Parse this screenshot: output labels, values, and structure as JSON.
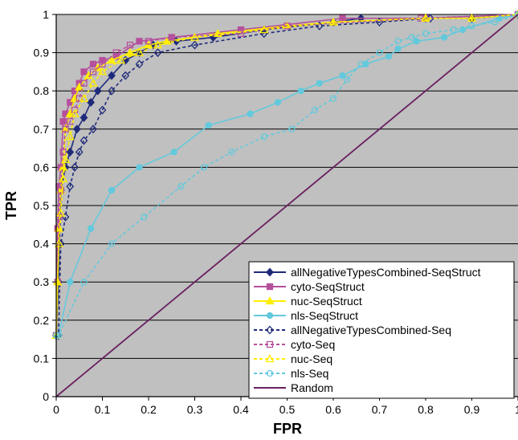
{
  "chart_data": {
    "type": "line",
    "title": "",
    "xlabel": "FPR",
    "ylabel": "TPR",
    "xlim": [
      0,
      1
    ],
    "ylim": [
      0,
      1
    ],
    "x_ticks": [
      "0",
      "0.1",
      "0.2",
      "0.3",
      "0.4",
      "0.5",
      "0.6",
      "0.7",
      "0.8",
      "0.9",
      "1"
    ],
    "y_ticks": [
      "0",
      "0.1",
      "0.2",
      "0.3",
      "0.4",
      "0.5",
      "0.6",
      "0.7",
      "0.8",
      "0.9",
      "1"
    ],
    "grid": true,
    "legend_position": "bottom-right",
    "colors": {
      "plot_background": "#c0c0c0",
      "grid": "#000000",
      "navy": "#1f2a7a",
      "magenta": "#b5509c",
      "yellow": "#ffee00",
      "cyan": "#63c9dc",
      "purple": "#6a2060"
    },
    "series": [
      {
        "name": "allNegativeTypesCombined-SeqStruct",
        "color": "#1f2a7a",
        "dash": false,
        "marker": "diamond",
        "filled": true,
        "x": [
          0,
          0.005,
          0.01,
          0.02,
          0.03,
          0.045,
          0.06,
          0.075,
          0.09,
          0.12,
          0.15,
          0.18,
          0.21,
          0.26,
          0.34,
          0.45,
          0.6,
          0.66,
          0.8,
          0.9,
          1
        ],
        "y": [
          0.16,
          0.3,
          0.54,
          0.6,
          0.64,
          0.7,
          0.73,
          0.77,
          0.8,
          0.84,
          0.88,
          0.9,
          0.92,
          0.93,
          0.94,
          0.96,
          0.98,
          0.99,
          0.99,
          0.99,
          1
        ]
      },
      {
        "name": "cyto-SeqStruct",
        "color": "#b5509c",
        "dash": false,
        "marker": "square",
        "filled": true,
        "x": [
          0,
          0.003,
          0.006,
          0.01,
          0.015,
          0.02,
          0.03,
          0.04,
          0.05,
          0.06,
          0.08,
          0.1,
          0.13,
          0.18,
          0.25,
          0.4,
          0.62,
          0.8,
          1
        ],
        "y": [
          0.16,
          0.44,
          0.55,
          0.6,
          0.72,
          0.74,
          0.77,
          0.8,
          0.82,
          0.85,
          0.87,
          0.88,
          0.89,
          0.93,
          0.94,
          0.96,
          0.99,
          0.99,
          1
        ]
      },
      {
        "name": "nuc-SeqStruct",
        "color": "#ffee00",
        "dash": false,
        "marker": "triangle",
        "filled": true,
        "x": [
          0,
          0.003,
          0.006,
          0.01,
          0.015,
          0.02,
          0.03,
          0.04,
          0.05,
          0.07,
          0.09,
          0.12,
          0.16,
          0.2,
          0.24,
          0.35,
          0.5,
          0.6,
          0.8,
          0.9,
          1
        ],
        "y": [
          0.16,
          0.3,
          0.44,
          0.54,
          0.6,
          0.7,
          0.74,
          0.78,
          0.81,
          0.84,
          0.86,
          0.88,
          0.9,
          0.92,
          0.93,
          0.95,
          0.97,
          0.98,
          0.99,
          0.99,
          1
        ]
      },
      {
        "name": "nls-SeqStruct",
        "color": "#63c9dc",
        "dash": false,
        "marker": "circle",
        "filled": true,
        "x": [
          0,
          0.005,
          0.03,
          0.075,
          0.12,
          0.18,
          0.255,
          0.33,
          0.42,
          0.48,
          0.53,
          0.57,
          0.62,
          0.67,
          0.72,
          0.74,
          0.78,
          0.84,
          0.88,
          0.96,
          1
        ],
        "y": [
          0.16,
          0.16,
          0.3,
          0.44,
          0.54,
          0.6,
          0.64,
          0.71,
          0.74,
          0.77,
          0.8,
          0.82,
          0.84,
          0.87,
          0.89,
          0.91,
          0.93,
          0.94,
          0.96,
          0.99,
          1
        ]
      },
      {
        "name": "allNegativeTypesCombined-Seq",
        "color": "#1f2a7a",
        "dash": true,
        "marker": "diamond",
        "filled": false,
        "x": [
          0,
          0.005,
          0.01,
          0.02,
          0.03,
          0.04,
          0.05,
          0.06,
          0.08,
          0.1,
          0.12,
          0.15,
          0.18,
          0.22,
          0.3,
          0.45,
          0.57,
          0.7,
          0.81,
          0.9,
          1
        ],
        "y": [
          0.16,
          0.16,
          0.4,
          0.47,
          0.55,
          0.6,
          0.64,
          0.67,
          0.7,
          0.75,
          0.8,
          0.84,
          0.87,
          0.9,
          0.92,
          0.95,
          0.97,
          0.98,
          0.99,
          0.99,
          1
        ]
      },
      {
        "name": "cyto-Seq",
        "color": "#b5509c",
        "dash": true,
        "marker": "square",
        "filled": false,
        "x": [
          0,
          0.003,
          0.006,
          0.01,
          0.015,
          0.02,
          0.03,
          0.04,
          0.05,
          0.06,
          0.08,
          0.1,
          0.13,
          0.16,
          0.2,
          0.25,
          0.4,
          0.5,
          0.79,
          1
        ],
        "y": [
          0.16,
          0.3,
          0.47,
          0.54,
          0.64,
          0.7,
          0.72,
          0.75,
          0.78,
          0.82,
          0.85,
          0.87,
          0.9,
          0.92,
          0.93,
          0.94,
          0.95,
          0.97,
          0.99,
          1
        ]
      },
      {
        "name": "nuc-Seq",
        "color": "#ffee00",
        "dash": true,
        "marker": "triangle",
        "filled": false,
        "x": [
          0,
          0.003,
          0.006,
          0.01,
          0.015,
          0.02,
          0.03,
          0.04,
          0.06,
          0.08,
          0.1,
          0.14,
          0.18,
          0.22,
          0.3,
          0.45,
          0.6,
          0.8,
          0.9,
          1
        ],
        "y": [
          0.16,
          0.3,
          0.4,
          0.48,
          0.57,
          0.62,
          0.68,
          0.74,
          0.78,
          0.82,
          0.85,
          0.88,
          0.9,
          0.92,
          0.94,
          0.96,
          0.98,
          0.99,
          0.99,
          1
        ]
      },
      {
        "name": "nls-Seq",
        "color": "#63c9dc",
        "dash": true,
        "marker": "circle",
        "filled": false,
        "x": [
          0,
          0.005,
          0.06,
          0.12,
          0.19,
          0.27,
          0.32,
          0.38,
          0.45,
          0.51,
          0.56,
          0.6,
          0.63,
          0.66,
          0.7,
          0.74,
          0.77,
          0.8,
          0.86,
          0.9,
          0.95,
          1
        ],
        "y": [
          0.16,
          0.16,
          0.3,
          0.4,
          0.47,
          0.55,
          0.6,
          0.64,
          0.68,
          0.7,
          0.75,
          0.78,
          0.83,
          0.87,
          0.9,
          0.93,
          0.94,
          0.95,
          0.96,
          0.97,
          0.98,
          1
        ]
      },
      {
        "name": "Random",
        "color": "#6a2060",
        "dash": false,
        "marker": "none",
        "filled": false,
        "x": [
          0,
          1
        ],
        "y": [
          0,
          1
        ]
      }
    ]
  }
}
